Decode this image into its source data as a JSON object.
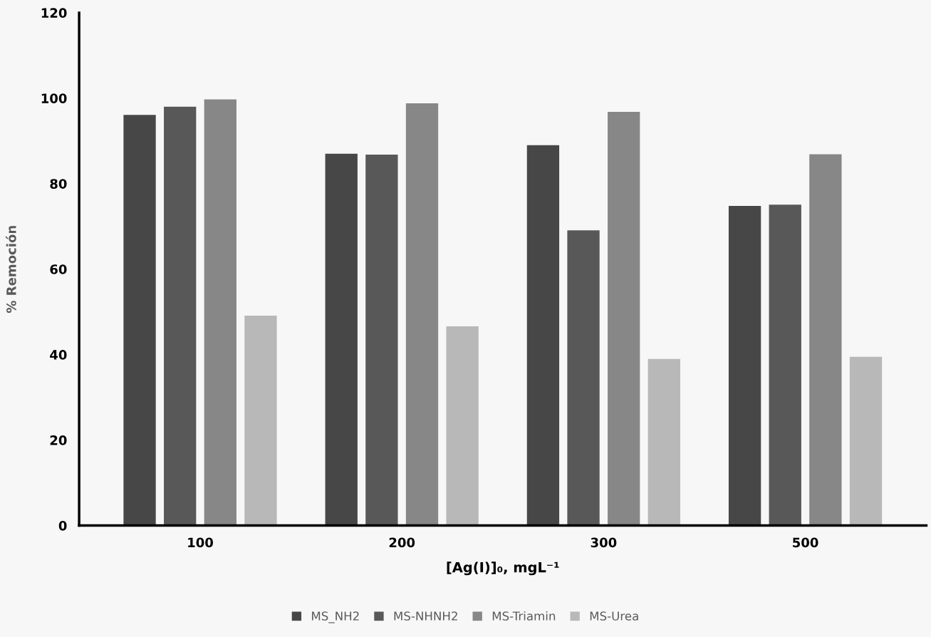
{
  "chart_data": {
    "type": "bar",
    "xlabel": "[Ag(I)]₀, mgL⁻¹",
    "ylabel": "% Remoción",
    "categories": [
      "100",
      "200",
      "300",
      "500"
    ],
    "series": [
      {
        "name": "MS_NH2",
        "color": "#474747",
        "values": [
          96.1,
          87.0,
          89.0,
          74.8
        ]
      },
      {
        "name": "MS-NHNH2",
        "color": "#585858",
        "values": [
          98.0,
          86.8,
          69.1,
          75.1
        ]
      },
      {
        "name": "MS-Triamin",
        "color": "#878787",
        "values": [
          99.7,
          98.8,
          96.8,
          86.9
        ]
      },
      {
        "name": "MS-Urea",
        "color": "#b8b8b8",
        "values": [
          49.1,
          46.6,
          39.0,
          39.5
        ]
      }
    ],
    "ylim": [
      0,
      120
    ],
    "yticks": [
      0,
      20,
      40,
      60,
      80,
      100,
      120
    ],
    "grid": false,
    "legend": "bottom"
  }
}
